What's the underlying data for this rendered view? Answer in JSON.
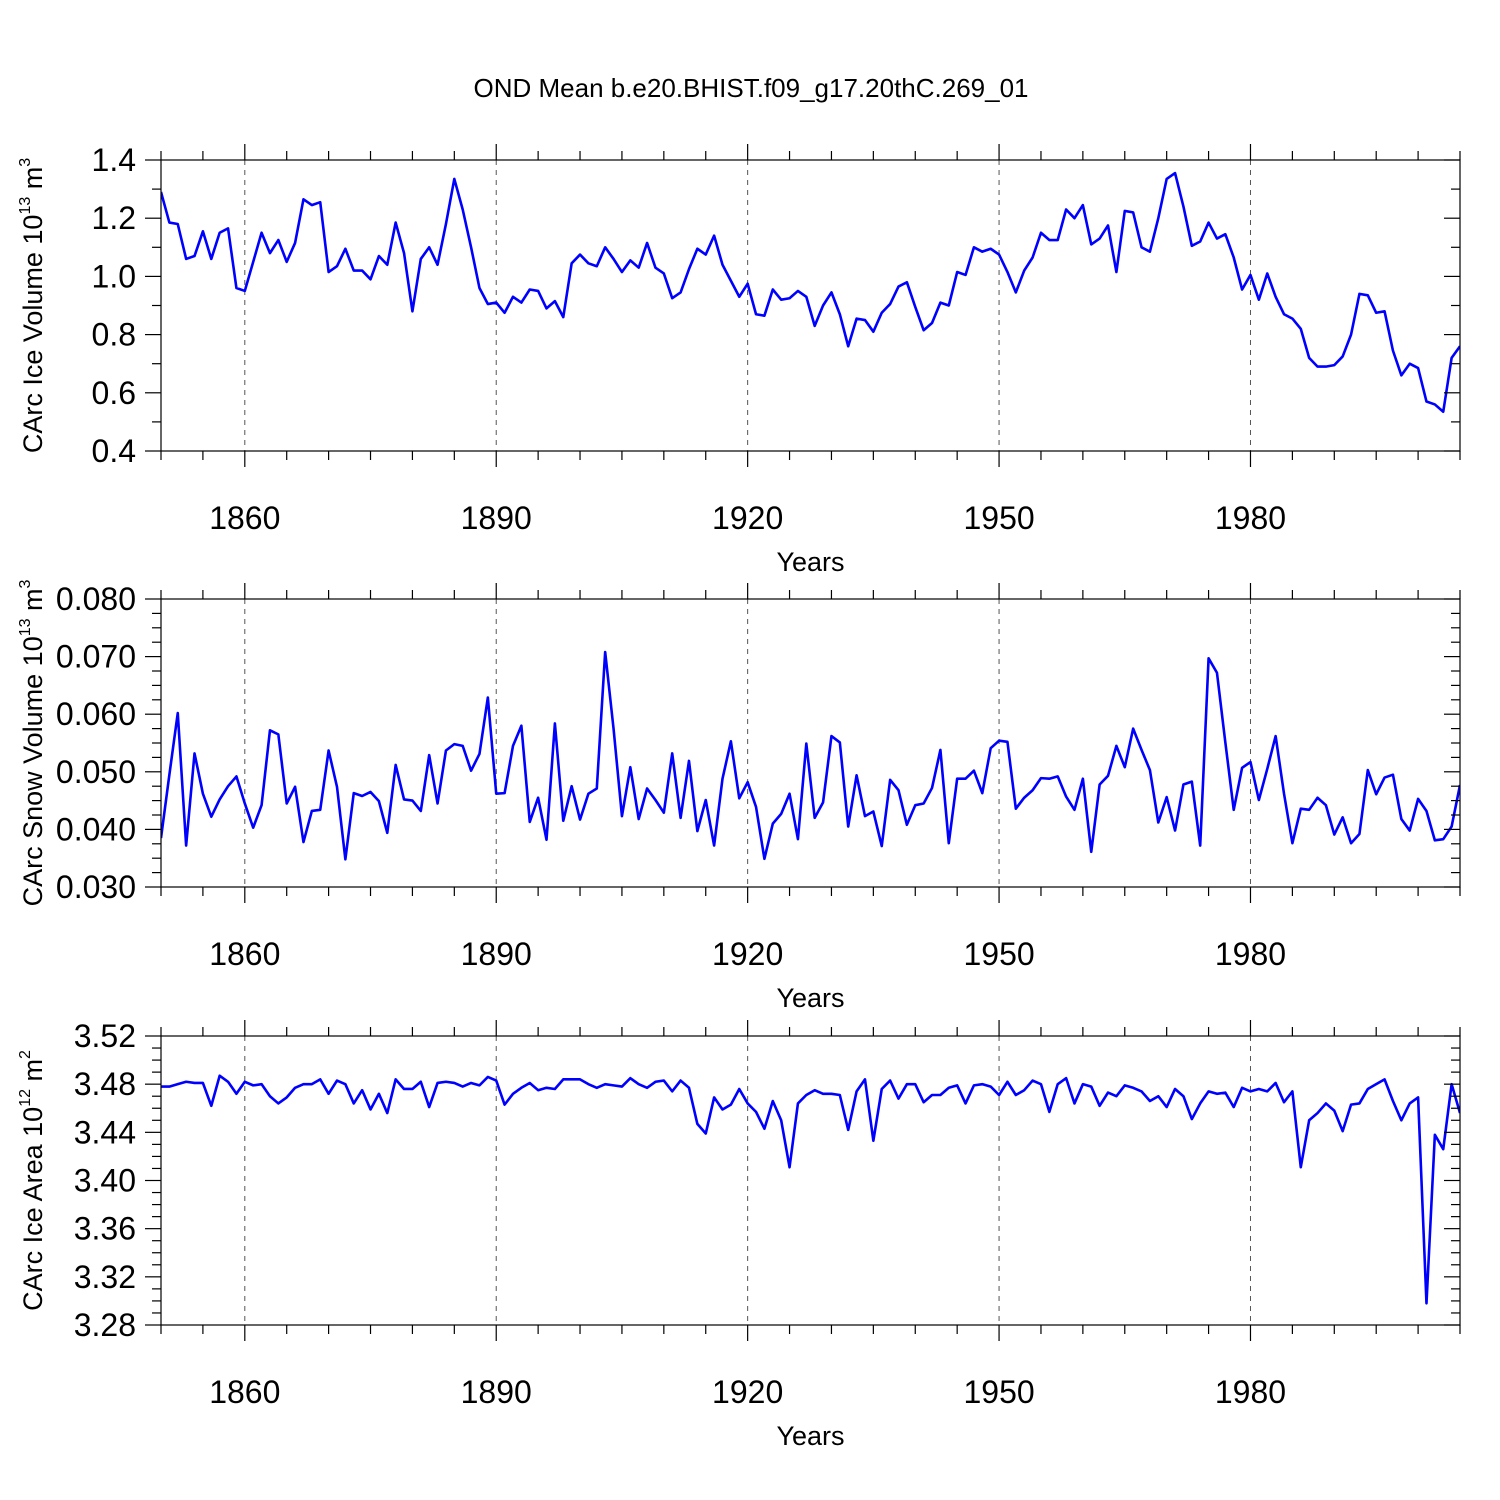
{
  "title": "OND Mean b.e20.BHIST.f09_g17.20thC.269_01",
  "chart_data": [
    {
      "type": "line",
      "name": "panel-ice-volume",
      "ylabel_main": "CArc Ice Volume 10",
      "ylabel_exp": "13",
      "ylabel_unit": " m",
      "ylabel_unit_exp": "3",
      "xlabel": "Years",
      "xlim": [
        1850,
        2005
      ],
      "ylim": [
        0.4,
        1.4
      ],
      "yticks": [
        0.4,
        0.6,
        0.8,
        1.0,
        1.2,
        1.4
      ],
      "ytick_labels": [
        "0.4",
        "0.6",
        "0.8",
        "1.0",
        "1.2",
        "1.4"
      ],
      "yminor": 0.1,
      "xticks": [
        1860,
        1890,
        1920,
        1950,
        1980
      ],
      "xtick_labels": [
        "1860",
        "1890",
        "1920",
        "1950",
        "1980"
      ],
      "color": "#0000ff",
      "x_start": 1850,
      "values": [
        1.29,
        1.185,
        1.18,
        1.06,
        1.07,
        1.155,
        1.06,
        1.15,
        1.165,
        0.96,
        0.95,
        1.05,
        1.15,
        1.08,
        1.125,
        1.05,
        1.115,
        1.265,
        1.245,
        1.255,
        1.015,
        1.035,
        1.095,
        1.02,
        1.02,
        0.99,
        1.07,
        1.04,
        1.185,
        1.08,
        0.88,
        1.06,
        1.1,
        1.04,
        1.18,
        1.335,
        1.23,
        1.1,
        0.96,
        0.905,
        0.91,
        0.875,
        0.93,
        0.91,
        0.955,
        0.95,
        0.89,
        0.915,
        0.86,
        1.045,
        1.075,
        1.045,
        1.035,
        1.1,
        1.06,
        1.015,
        1.055,
        1.03,
        1.115,
        1.03,
        1.01,
        0.925,
        0.945,
        1.025,
        1.095,
        1.075,
        1.14,
        1.04,
        0.985,
        0.93,
        0.975,
        0.87,
        0.865,
        0.955,
        0.92,
        0.925,
        0.95,
        0.93,
        0.83,
        0.9,
        0.945,
        0.87,
        0.76,
        0.855,
        0.85,
        0.81,
        0.875,
        0.905,
        0.965,
        0.98,
        0.895,
        0.815,
        0.84,
        0.91,
        0.9,
        1.015,
        1.005,
        1.1,
        1.085,
        1.095,
        1.075,
        1.015,
        0.945,
        1.02,
        1.065,
        1.15,
        1.125,
        1.125,
        1.23,
        1.2,
        1.245,
        1.11,
        1.13,
        1.175,
        1.015,
        1.225,
        1.22,
        1.1,
        1.085,
        1.2,
        1.335,
        1.355,
        1.24,
        1.105,
        1.12,
        1.185,
        1.13,
        1.145,
        1.065,
        0.955,
        1.005,
        0.92,
        1.01,
        0.93,
        0.87,
        0.855,
        0.82,
        0.72,
        0.69,
        0.69,
        0.695,
        0.725,
        0.8,
        0.94,
        0.935,
        0.875,
        0.88,
        0.745,
        0.66,
        0.7,
        0.685,
        0.57,
        0.56,
        0.535,
        0.72,
        0.76
      ]
    },
    {
      "type": "line",
      "name": "panel-snow-volume",
      "ylabel_main": "CArc Snow Volume 10",
      "ylabel_exp": "13",
      "ylabel_unit": " m",
      "ylabel_unit_exp": "3",
      "xlabel": "Years",
      "xlim": [
        1850,
        2005
      ],
      "ylim": [
        0.03,
        0.08
      ],
      "yticks": [
        0.03,
        0.04,
        0.05,
        0.06,
        0.07,
        0.08
      ],
      "ytick_labels": [
        "0.030",
        "0.040",
        "0.050",
        "0.060",
        "0.070",
        "0.080"
      ],
      "yminor": 0.0025,
      "xticks": [
        1860,
        1890,
        1920,
        1950,
        1980
      ],
      "xtick_labels": [
        "1860",
        "1890",
        "1920",
        "1950",
        "1980"
      ],
      "color": "#0000ff",
      "x_start": 1850,
      "values": [
        0.0385,
        0.0495,
        0.0602,
        0.0372,
        0.0532,
        0.0462,
        0.0422,
        0.0452,
        0.0475,
        0.0492,
        0.0445,
        0.0403,
        0.0442,
        0.0572,
        0.0565,
        0.0445,
        0.0474,
        0.0378,
        0.0432,
        0.0434,
        0.0537,
        0.0474,
        0.0348,
        0.0463,
        0.0458,
        0.0465,
        0.0449,
        0.0394,
        0.0512,
        0.0452,
        0.045,
        0.0432,
        0.0529,
        0.0445,
        0.0537,
        0.0548,
        0.0545,
        0.0502,
        0.0531,
        0.0629,
        0.0462,
        0.0463,
        0.0545,
        0.058,
        0.0413,
        0.0455,
        0.0382,
        0.0584,
        0.0415,
        0.0475,
        0.0417,
        0.0462,
        0.0471,
        0.0708,
        0.0575,
        0.0423,
        0.0508,
        0.0418,
        0.0471,
        0.0451,
        0.0429,
        0.0532,
        0.042,
        0.0519,
        0.0397,
        0.0451,
        0.0372,
        0.0488,
        0.0553,
        0.0454,
        0.0482,
        0.0439,
        0.0349,
        0.041,
        0.0427,
        0.0462,
        0.0383,
        0.0549,
        0.042,
        0.0447,
        0.0562,
        0.0551,
        0.0405,
        0.0494,
        0.0423,
        0.0431,
        0.0371,
        0.0486,
        0.0468,
        0.0408,
        0.0442,
        0.0445,
        0.0472,
        0.0538,
        0.0376,
        0.0488,
        0.0488,
        0.0502,
        0.0463,
        0.0541,
        0.0554,
        0.0552,
        0.0436,
        0.0455,
        0.0468,
        0.0489,
        0.0488,
        0.0492,
        0.0457,
        0.0434,
        0.0488,
        0.0361,
        0.0478,
        0.0493,
        0.0545,
        0.0508,
        0.0575,
        0.0538,
        0.0503,
        0.0412,
        0.0456,
        0.0398,
        0.0478,
        0.0483,
        0.0372,
        0.0697,
        0.0672,
        0.0551,
        0.0434,
        0.0507,
        0.0517,
        0.0451,
        0.0505,
        0.0562,
        0.0462,
        0.0376,
        0.0436,
        0.0434,
        0.0455,
        0.0442,
        0.0391,
        0.0421,
        0.0376,
        0.0392,
        0.0503,
        0.0461,
        0.049,
        0.0495,
        0.0418,
        0.0398,
        0.0453,
        0.0432,
        0.0381,
        0.0383,
        0.0405,
        0.0477
      ]
    },
    {
      "type": "line",
      "name": "panel-ice-area",
      "ylabel_main": "CArc Ice Area 10",
      "ylabel_exp": "12",
      "ylabel_unit": " m",
      "ylabel_unit_exp": "2",
      "xlabel": "Years",
      "xlim": [
        1850,
        2005
      ],
      "ylim": [
        3.28,
        3.52
      ],
      "yticks": [
        3.28,
        3.32,
        3.36,
        3.4,
        3.44,
        3.48,
        3.52
      ],
      "ytick_labels": [
        "3.28",
        "3.32",
        "3.36",
        "3.40",
        "3.44",
        "3.48",
        "3.52"
      ],
      "yminor": 0.01,
      "xticks": [
        1860,
        1890,
        1920,
        1950,
        1980
      ],
      "xtick_labels": [
        "1860",
        "1890",
        "1920",
        "1950",
        "1980"
      ],
      "color": "#0000ff",
      "x_start": 1850,
      "values": [
        3.478,
        3.478,
        3.48,
        3.482,
        3.481,
        3.481,
        3.462,
        3.487,
        3.482,
        3.472,
        3.482,
        3.479,
        3.48,
        3.47,
        3.464,
        3.469,
        3.477,
        3.48,
        3.48,
        3.484,
        3.472,
        3.483,
        3.48,
        3.464,
        3.475,
        3.459,
        3.472,
        3.456,
        3.484,
        3.476,
        3.476,
        3.482,
        3.461,
        3.481,
        3.482,
        3.481,
        3.478,
        3.481,
        3.479,
        3.486,
        3.483,
        3.463,
        3.472,
        3.477,
        3.481,
        3.475,
        3.477,
        3.476,
        3.484,
        3.484,
        3.484,
        3.48,
        3.477,
        3.48,
        3.479,
        3.478,
        3.485,
        3.48,
        3.477,
        3.482,
        3.483,
        3.474,
        3.483,
        3.477,
        3.447,
        3.439,
        3.469,
        3.459,
        3.463,
        3.476,
        3.464,
        3.457,
        3.443,
        3.466,
        3.45,
        3.411,
        3.464,
        3.471,
        3.475,
        3.472,
        3.472,
        3.471,
        3.442,
        3.474,
        3.484,
        3.433,
        3.476,
        3.483,
        3.468,
        3.48,
        3.48,
        3.465,
        3.471,
        3.471,
        3.477,
        3.479,
        3.464,
        3.479,
        3.48,
        3.478,
        3.471,
        3.482,
        3.471,
        3.475,
        3.483,
        3.48,
        3.457,
        3.48,
        3.485,
        3.464,
        3.48,
        3.478,
        3.462,
        3.473,
        3.47,
        3.479,
        3.477,
        3.474,
        3.466,
        3.47,
        3.461,
        3.476,
        3.47,
        3.451,
        3.464,
        3.474,
        3.472,
        3.473,
        3.461,
        3.477,
        3.474,
        3.476,
        3.474,
        3.481,
        3.465,
        3.474,
        3.411,
        3.45,
        3.456,
        3.464,
        3.458,
        3.441,
        3.463,
        3.464,
        3.476,
        3.48,
        3.484,
        3.466,
        3.45,
        3.464,
        3.469,
        3.298,
        3.438,
        3.426,
        3.48,
        3.456
      ]
    }
  ]
}
